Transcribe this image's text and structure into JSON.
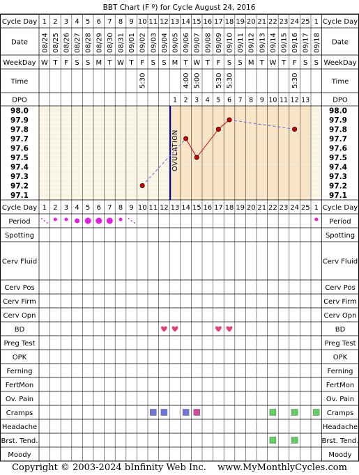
{
  "title": "BBT Chart (F º) for Cycle August 24, 2016",
  "rowLabels": {
    "cycleDay": "Cycle Day",
    "date": "Date",
    "weekday": "WeekDay",
    "time": "Time",
    "dpo": "DPO",
    "period": "Period",
    "spotting": "Spotting",
    "cervFluid": "Cerv Fluid",
    "cervPos": "Cerv Pos",
    "cervFirm": "Cerv Firm",
    "cervOpn": "Cerv Opn",
    "bd": "BD",
    "pregTest": "Preg Test",
    "opk": "OPK",
    "ferning": "Ferning",
    "fertMon": "FertMon",
    "ovPain": "Ov. Pain",
    "cramps": "Cramps",
    "headache": "Headache",
    "brstTend": "Brst. Tend.",
    "moody": "Moody"
  },
  "cycleDays": [
    "1",
    "2",
    "3",
    "4",
    "5",
    "6",
    "7",
    "8",
    "9",
    "10",
    "11",
    "12",
    "13",
    "14",
    "15",
    "16",
    "17",
    "18",
    "19",
    "20",
    "21",
    "22",
    "23",
    "24",
    "25",
    "1"
  ],
  "dates": [
    "08/24",
    "08/25",
    "08/26",
    "08/27",
    "08/28",
    "08/29",
    "08/30",
    "08/31",
    "09/01",
    "09/02",
    "09/03",
    "09/04",
    "09/05",
    "09/06",
    "09/07",
    "09/08",
    "09/09",
    "09/10",
    "09/11",
    "09/12",
    "09/13",
    "09/14",
    "09/15",
    "09/16",
    "09/17",
    "09/18"
  ],
  "weekdays": [
    "W",
    "T",
    "F",
    "S",
    "S",
    "M",
    "T",
    "W",
    "T",
    "F",
    "S",
    "S",
    "M",
    "T",
    "W",
    "T",
    "F",
    "S",
    "S",
    "M",
    "T",
    "W",
    "T",
    "F",
    "S",
    "S"
  ],
  "times": [
    "",
    "",
    "",
    "",
    "",
    "",
    "",
    "",
    "",
    "5:30",
    "",
    "",
    "",
    "4:00",
    "5:00",
    "",
    "5:30",
    "5:30",
    "",
    "",
    "",
    "",
    "",
    "5:30",
    "",
    ""
  ],
  "dpo": [
    "",
    "",
    "",
    "",
    "",
    "",
    "",
    "",
    "",
    "",
    "",
    "",
    "1",
    "2",
    "3",
    "4",
    "5",
    "6",
    "7",
    "8",
    "9",
    "10",
    "11",
    "12",
    "13",
    ""
  ],
  "tempAxis": [
    "98.0",
    "97.9",
    "97.8",
    "97.7",
    "97.6",
    "97.5",
    "97.4",
    "97.3",
    "97.2",
    "97.1"
  ],
  "ovulationLabel": "OVULATION",
  "chart_data": {
    "type": "line",
    "ylim": [
      97.1,
      98.0
    ],
    "ovulation_after_day": 12,
    "points": [
      {
        "day": 10,
        "temp": 97.2
      },
      {
        "day": 14,
        "temp": 97.7
      },
      {
        "day": 15,
        "temp": 97.5
      },
      {
        "day": 17,
        "temp": 97.8
      },
      {
        "day": 18,
        "temp": 97.9
      },
      {
        "day": 24,
        "temp": 97.8
      }
    ],
    "dashed_segments": [
      [
        10,
        14
      ],
      [
        18,
        24
      ]
    ],
    "solid_segments": [
      [
        14,
        15
      ],
      [
        15,
        17
      ],
      [
        17,
        18
      ]
    ]
  },
  "period": [
    {
      "day": 1,
      "kind": "spot"
    },
    {
      "day": 2,
      "kind": "light"
    },
    {
      "day": 3,
      "kind": "light"
    },
    {
      "day": 4,
      "kind": "medium"
    },
    {
      "day": 5,
      "kind": "heavy"
    },
    {
      "day": 6,
      "kind": "heavy"
    },
    {
      "day": 7,
      "kind": "heavy"
    },
    {
      "day": 8,
      "kind": "light"
    },
    {
      "day": 9,
      "kind": "spot"
    },
    {
      "day": 26,
      "kind": "light"
    }
  ],
  "bdDays": [
    12,
    13,
    17,
    18
  ],
  "cramps": [
    {
      "day": 11,
      "color": "#6f74d8"
    },
    {
      "day": 12,
      "color": "#6f74d8"
    },
    {
      "day": 14,
      "color": "#6f74d8"
    },
    {
      "day": 15,
      "color": "#d0499b"
    },
    {
      "day": 22,
      "color": "#66cc66"
    },
    {
      "day": 24,
      "color": "#66cc66"
    },
    {
      "day": 26,
      "color": "#66cc66"
    }
  ],
  "breastTenderness": [
    {
      "day": 22,
      "color": "#66cc66"
    },
    {
      "day": 24,
      "color": "#66cc66"
    }
  ],
  "colors": {
    "period": "#e020e0",
    "bd": "#e0407a",
    "ovulation": "#000099",
    "temp": "#cc0000",
    "chartBg": "#fbf6e6",
    "postOvBg": "#fae5c6"
  },
  "footer": {
    "copyright": "Copyright © 2003-2024 bInfinity Web Inc.",
    "site": "www.MyMonthlyCycles.com"
  }
}
